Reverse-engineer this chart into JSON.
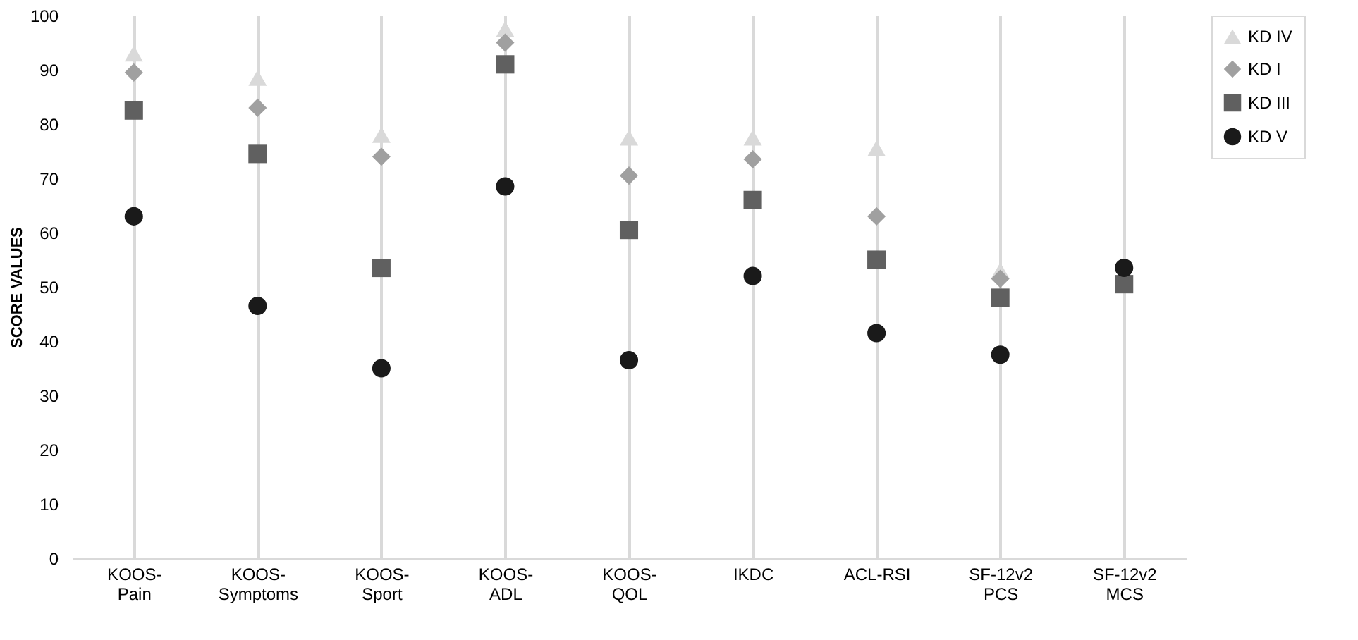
{
  "chart_data": {
    "type": "scatter",
    "ylabel": "SCORE VALUES",
    "categories": [
      "KOOS-\nPain",
      "KOOS-\nSymptoms",
      "KOOS-\nSport",
      "KOOS-\nADL",
      "KOOS-\nQOL",
      "IKDC",
      "ACL-RSI",
      "SF-12v2\nPCS",
      "SF-12v2\nMCS"
    ],
    "series": [
      {
        "name": "KD IV",
        "color": "#d9d9d9",
        "marker": "triangle",
        "values": [
          93,
          88.5,
          78,
          97.5,
          77.5,
          77.5,
          75.5,
          53,
          null
        ]
      },
      {
        "name": "KD I",
        "color": "#a0a0a0",
        "marker": "diamond",
        "values": [
          89.5,
          83,
          74,
          95,
          70.5,
          73.5,
          63,
          51.5,
          null
        ]
      },
      {
        "name": "KD III",
        "color": "#606060",
        "marker": "square",
        "values": [
          82.5,
          74.5,
          53.5,
          91,
          60.5,
          66,
          55,
          48,
          50.5
        ]
      },
      {
        "name": "KD V",
        "color": "#1a1a1a",
        "marker": "circle",
        "values": [
          63,
          46.5,
          35,
          68.5,
          36.5,
          52,
          41.5,
          37.5,
          53.5
        ]
      }
    ],
    "ylim": [
      0,
      100
    ],
    "yticks": [
      0,
      10,
      20,
      30,
      40,
      50,
      60,
      70,
      80,
      90,
      100
    ],
    "grid": "x",
    "legend": "right"
  }
}
